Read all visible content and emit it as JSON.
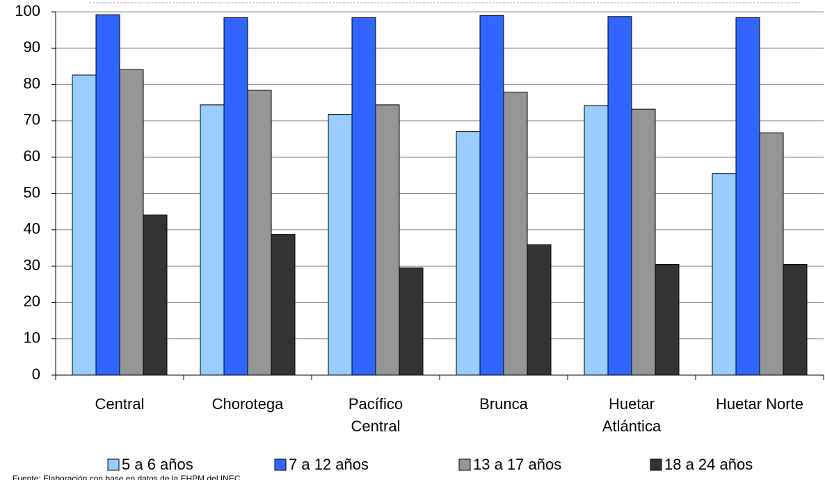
{
  "chart_data": {
    "type": "bar",
    "categories": [
      "Central",
      "Chorotega",
      "Pacífico\nCentral",
      "Brunca",
      "Huetar\nAtlántica",
      "Huetar Norte"
    ],
    "series": [
      {
        "name": "5 a 6 años",
        "color": "#99ccff",
        "values": [
          82.6,
          74.4,
          71.8,
          67.0,
          74.2,
          55.5
        ]
      },
      {
        "name": "7 a 12 años",
        "color": "#3366ff",
        "values": [
          99.2,
          98.4,
          98.4,
          99.0,
          98.7,
          98.4
        ]
      },
      {
        "name": "13 a 17 años",
        "color": "#969696",
        "values": [
          84.1,
          78.4,
          74.4,
          77.9,
          73.2,
          66.7
        ]
      },
      {
        "name": "18 a 24 años",
        "color": "#333333",
        "values": [
          44.1,
          38.7,
          29.5,
          35.9,
          30.5,
          30.5
        ]
      }
    ],
    "ylim": [
      0,
      100
    ],
    "yticks": [
      0,
      10,
      20,
      30,
      40,
      50,
      60,
      70,
      80,
      90,
      100
    ],
    "grid": true,
    "legend": "bottom",
    "source": "Fuente: Elaboración con base en datos de la EHPM del INEC."
  }
}
